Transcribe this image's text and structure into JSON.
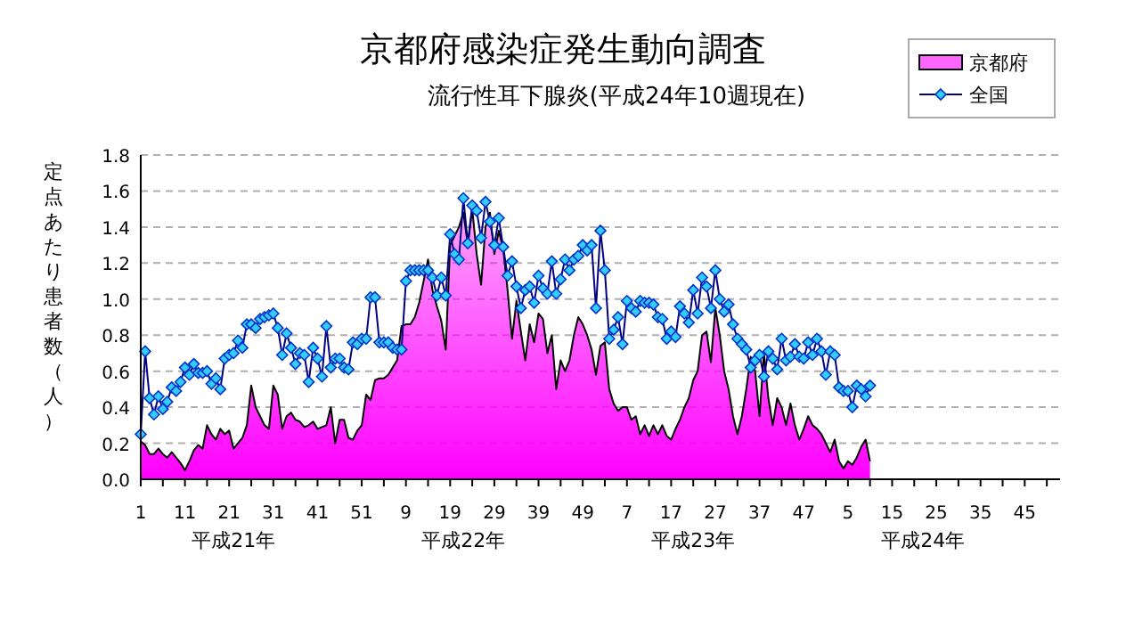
{
  "chart_data": {
    "type": "area",
    "title": "京都府感染症発生動向調査",
    "subtitle": "流行性耳下腺炎(平成24年10週現在)",
    "ylabel": "定点あたり患者数（人）",
    "annotations": [
      "平成21年",
      "平成22年",
      "平成23年",
      "平成24年"
    ],
    "categories": [
      "1",
      null,
      null,
      null,
      null,
      null,
      null,
      null,
      null,
      null,
      "11",
      null,
      null,
      null,
      null,
      null,
      null,
      null,
      null,
      null,
      "21",
      null,
      null,
      null,
      null,
      null,
      null,
      null,
      null,
      null,
      "31",
      null,
      null,
      null,
      null,
      null,
      null,
      null,
      null,
      null,
      "41",
      null,
      null,
      null,
      null,
      null,
      null,
      null,
      null,
      null,
      "51",
      null,
      null,
      null,
      null,
      null,
      null,
      null,
      null,
      null,
      "9",
      null,
      null,
      null,
      null,
      null,
      null,
      null,
      null,
      null,
      "19",
      null,
      null,
      null,
      null,
      null,
      null,
      null,
      null,
      null,
      "29",
      null,
      null,
      null,
      null,
      null,
      null,
      null,
      null,
      null,
      "39",
      null,
      null,
      null,
      null,
      null,
      null,
      null,
      null,
      null,
      "49",
      null,
      null,
      null,
      null,
      null,
      null,
      null,
      null,
      null,
      "7",
      null,
      null,
      null,
      null,
      null,
      null,
      null,
      null,
      null,
      "17",
      null,
      null,
      null,
      null,
      null,
      null,
      null,
      null,
      null,
      "27",
      null,
      null,
      null,
      null,
      null,
      null,
      null,
      null,
      null,
      "37",
      null,
      null,
      null,
      null,
      null,
      null,
      null,
      null,
      null,
      "47",
      null,
      null,
      null,
      null,
      null,
      null,
      null,
      null,
      null,
      "5",
      null,
      null,
      null,
      null,
      null,
      null,
      null,
      null,
      null,
      "15",
      null,
      null,
      null,
      null,
      null,
      null,
      null,
      null,
      null,
      "25",
      null,
      null,
      null,
      null,
      null,
      null,
      null,
      null,
      null,
      "35",
      null,
      null,
      null,
      null,
      null,
      null,
      null,
      null,
      null,
      "45",
      null,
      null,
      null,
      null,
      null,
      null,
      null
    ],
    "series": [
      {
        "name": "京都府",
        "color": "#ff00ff",
        "values": [
          0.21,
          0.19,
          0.14,
          0.14,
          0.17,
          0.14,
          0.12,
          0.15,
          0.12,
          0.09,
          0.05,
          0.1,
          0.16,
          0.19,
          0.17,
          0.3,
          0.25,
          0.22,
          0.28,
          0.25,
          0.27,
          0.17,
          0.2,
          0.23,
          0.3,
          0.52,
          0.4,
          0.35,
          0.3,
          0.28,
          0.52,
          0.47,
          0.28,
          0.35,
          0.37,
          0.33,
          0.32,
          0.29,
          0.3,
          0.32,
          0.28,
          0.29,
          0.3,
          0.4,
          0.2,
          0.33,
          0.33,
          0.23,
          0.22,
          0.27,
          0.3,
          0.47,
          0.44,
          0.55,
          0.56,
          0.56,
          0.58,
          0.62,
          0.66,
          0.85,
          0.86,
          0.86,
          0.9,
          0.98,
          1.1,
          1.22,
          1.05,
          0.96,
          0.88,
          0.72,
          1.3,
          1.35,
          1.4,
          1.48,
          1.3,
          1.5,
          1.25,
          1.08,
          1.4,
          1.48,
          1.25,
          1.38,
          1.28,
          1.05,
          0.78,
          0.99,
          0.82,
          0.66,
          0.86,
          0.76,
          0.92,
          0.89,
          0.7,
          0.8,
          0.5,
          0.66,
          0.6,
          0.66,
          0.8,
          0.9,
          0.86,
          0.8,
          0.72,
          0.58,
          0.74,
          0.76,
          0.5,
          0.42,
          0.38,
          0.4,
          0.4,
          0.33,
          0.35,
          0.25,
          0.3,
          0.24,
          0.3,
          0.25,
          0.3,
          0.24,
          0.22,
          0.28,
          0.33,
          0.4,
          0.45,
          0.55,
          0.6,
          0.8,
          0.82,
          0.65,
          0.95,
          0.8,
          0.6,
          0.5,
          0.35,
          0.25,
          0.35,
          0.5,
          0.68,
          0.6,
          0.35,
          0.7,
          0.45,
          0.3,
          0.45,
          0.4,
          0.3,
          0.42,
          0.3,
          0.22,
          0.28,
          0.35,
          0.3,
          0.28,
          0.25,
          0.2,
          0.15,
          0.22,
          0.1,
          0.06,
          0.1,
          0.08,
          0.12,
          0.18,
          0.22,
          0.1,
          null,
          null,
          null,
          null,
          null,
          null,
          null,
          null,
          null,
          null,
          null,
          null,
          null,
          null,
          null,
          null,
          null,
          null,
          null,
          null,
          null,
          null,
          null,
          null,
          null,
          null,
          null,
          null,
          null,
          null,
          null,
          null,
          null,
          null,
          null,
          null,
          null,
          null,
          null,
          null,
          null,
          null
        ]
      },
      {
        "name": "全国",
        "type": "line",
        "color": "#33ccff",
        "marker": "diamond",
        "values": [
          0.25,
          0.71,
          0.45,
          0.36,
          0.46,
          0.39,
          0.43,
          0.51,
          0.49,
          0.54,
          0.62,
          0.58,
          0.64,
          0.59,
          0.59,
          0.6,
          0.53,
          0.56,
          0.5,
          0.67,
          0.69,
          0.7,
          0.77,
          0.73,
          0.86,
          0.86,
          0.84,
          0.89,
          0.9,
          0.91,
          0.92,
          0.84,
          0.69,
          0.81,
          0.73,
          0.64,
          0.7,
          0.69,
          0.54,
          0.73,
          0.67,
          0.57,
          0.85,
          0.62,
          0.67,
          0.67,
          0.62,
          0.61,
          0.76,
          0.75,
          0.78,
          0.78,
          1.01,
          1.01,
          0.76,
          0.76,
          0.76,
          0.73,
          0.72,
          0.72,
          1.1,
          1.16,
          1.16,
          1.16,
          1.16,
          1.16,
          1.12,
          1.02,
          1.12,
          1.02,
          1.36,
          1.25,
          1.22,
          1.56,
          1.31,
          1.52,
          1.49,
          1.34,
          1.54,
          1.43,
          1.3,
          1.45,
          1.29,
          1.13,
          1.21,
          1.07,
          0.95,
          1.05,
          1.07,
          0.98,
          1.13,
          1.06,
          1.03,
          1.21,
          1.03,
          1.11,
          1.22,
          1.16,
          1.22,
          1.24,
          1.3,
          1.27,
          1.3,
          0.95,
          1.38,
          1.16,
          0.78,
          0.83,
          0.9,
          0.75,
          0.99,
          0.95,
          0.93,
          0.99,
          0.98,
          0.98,
          0.97,
          0.9,
          0.89,
          0.78,
          0.82,
          0.79,
          0.96,
          0.92,
          0.87,
          1.05,
          0.92,
          1.12,
          1.07,
          0.95,
          1.16,
          1.0,
          0.93,
          0.97,
          0.86,
          0.78,
          0.75,
          0.72,
          0.62,
          0.66,
          0.69,
          0.57,
          0.71,
          0.67,
          0.61,
          0.78,
          0.66,
          0.68,
          0.75,
          0.68,
          0.67,
          0.76,
          0.69,
          0.78,
          0.71,
          0.58,
          0.71,
          0.69,
          0.51,
          0.49,
          0.49,
          0.4,
          0.52,
          0.5,
          0.46,
          0.52,
          null,
          null,
          null,
          null,
          null,
          null,
          null,
          null,
          null,
          null,
          null,
          null,
          null,
          null,
          null,
          null,
          null,
          null,
          null,
          null,
          null,
          null,
          null,
          null,
          null,
          null,
          null,
          null,
          null,
          null,
          null,
          null,
          null,
          null,
          null,
          null,
          null,
          null,
          null,
          null,
          null,
          null
        ]
      }
    ],
    "ylim": [
      0,
      1.8
    ],
    "yticks": [
      {
        "value": 0,
        "label": "0.0"
      },
      {
        "value": 0.2,
        "label": "0.2"
      },
      {
        "value": 0.4,
        "label": "0.4"
      },
      {
        "value": 0.6,
        "label": "0.6"
      },
      {
        "value": 0.8,
        "label": "0.8"
      },
      {
        "value": 1,
        "label": "1.0"
      },
      {
        "value": 1.2,
        "label": "1.2"
      },
      {
        "value": 1.4,
        "label": "1.4"
      },
      {
        "value": 1.6,
        "label": "1.6"
      },
      {
        "value": 1.8,
        "label": "1.8"
      }
    ],
    "grid": "y",
    "legend": "top right"
  }
}
